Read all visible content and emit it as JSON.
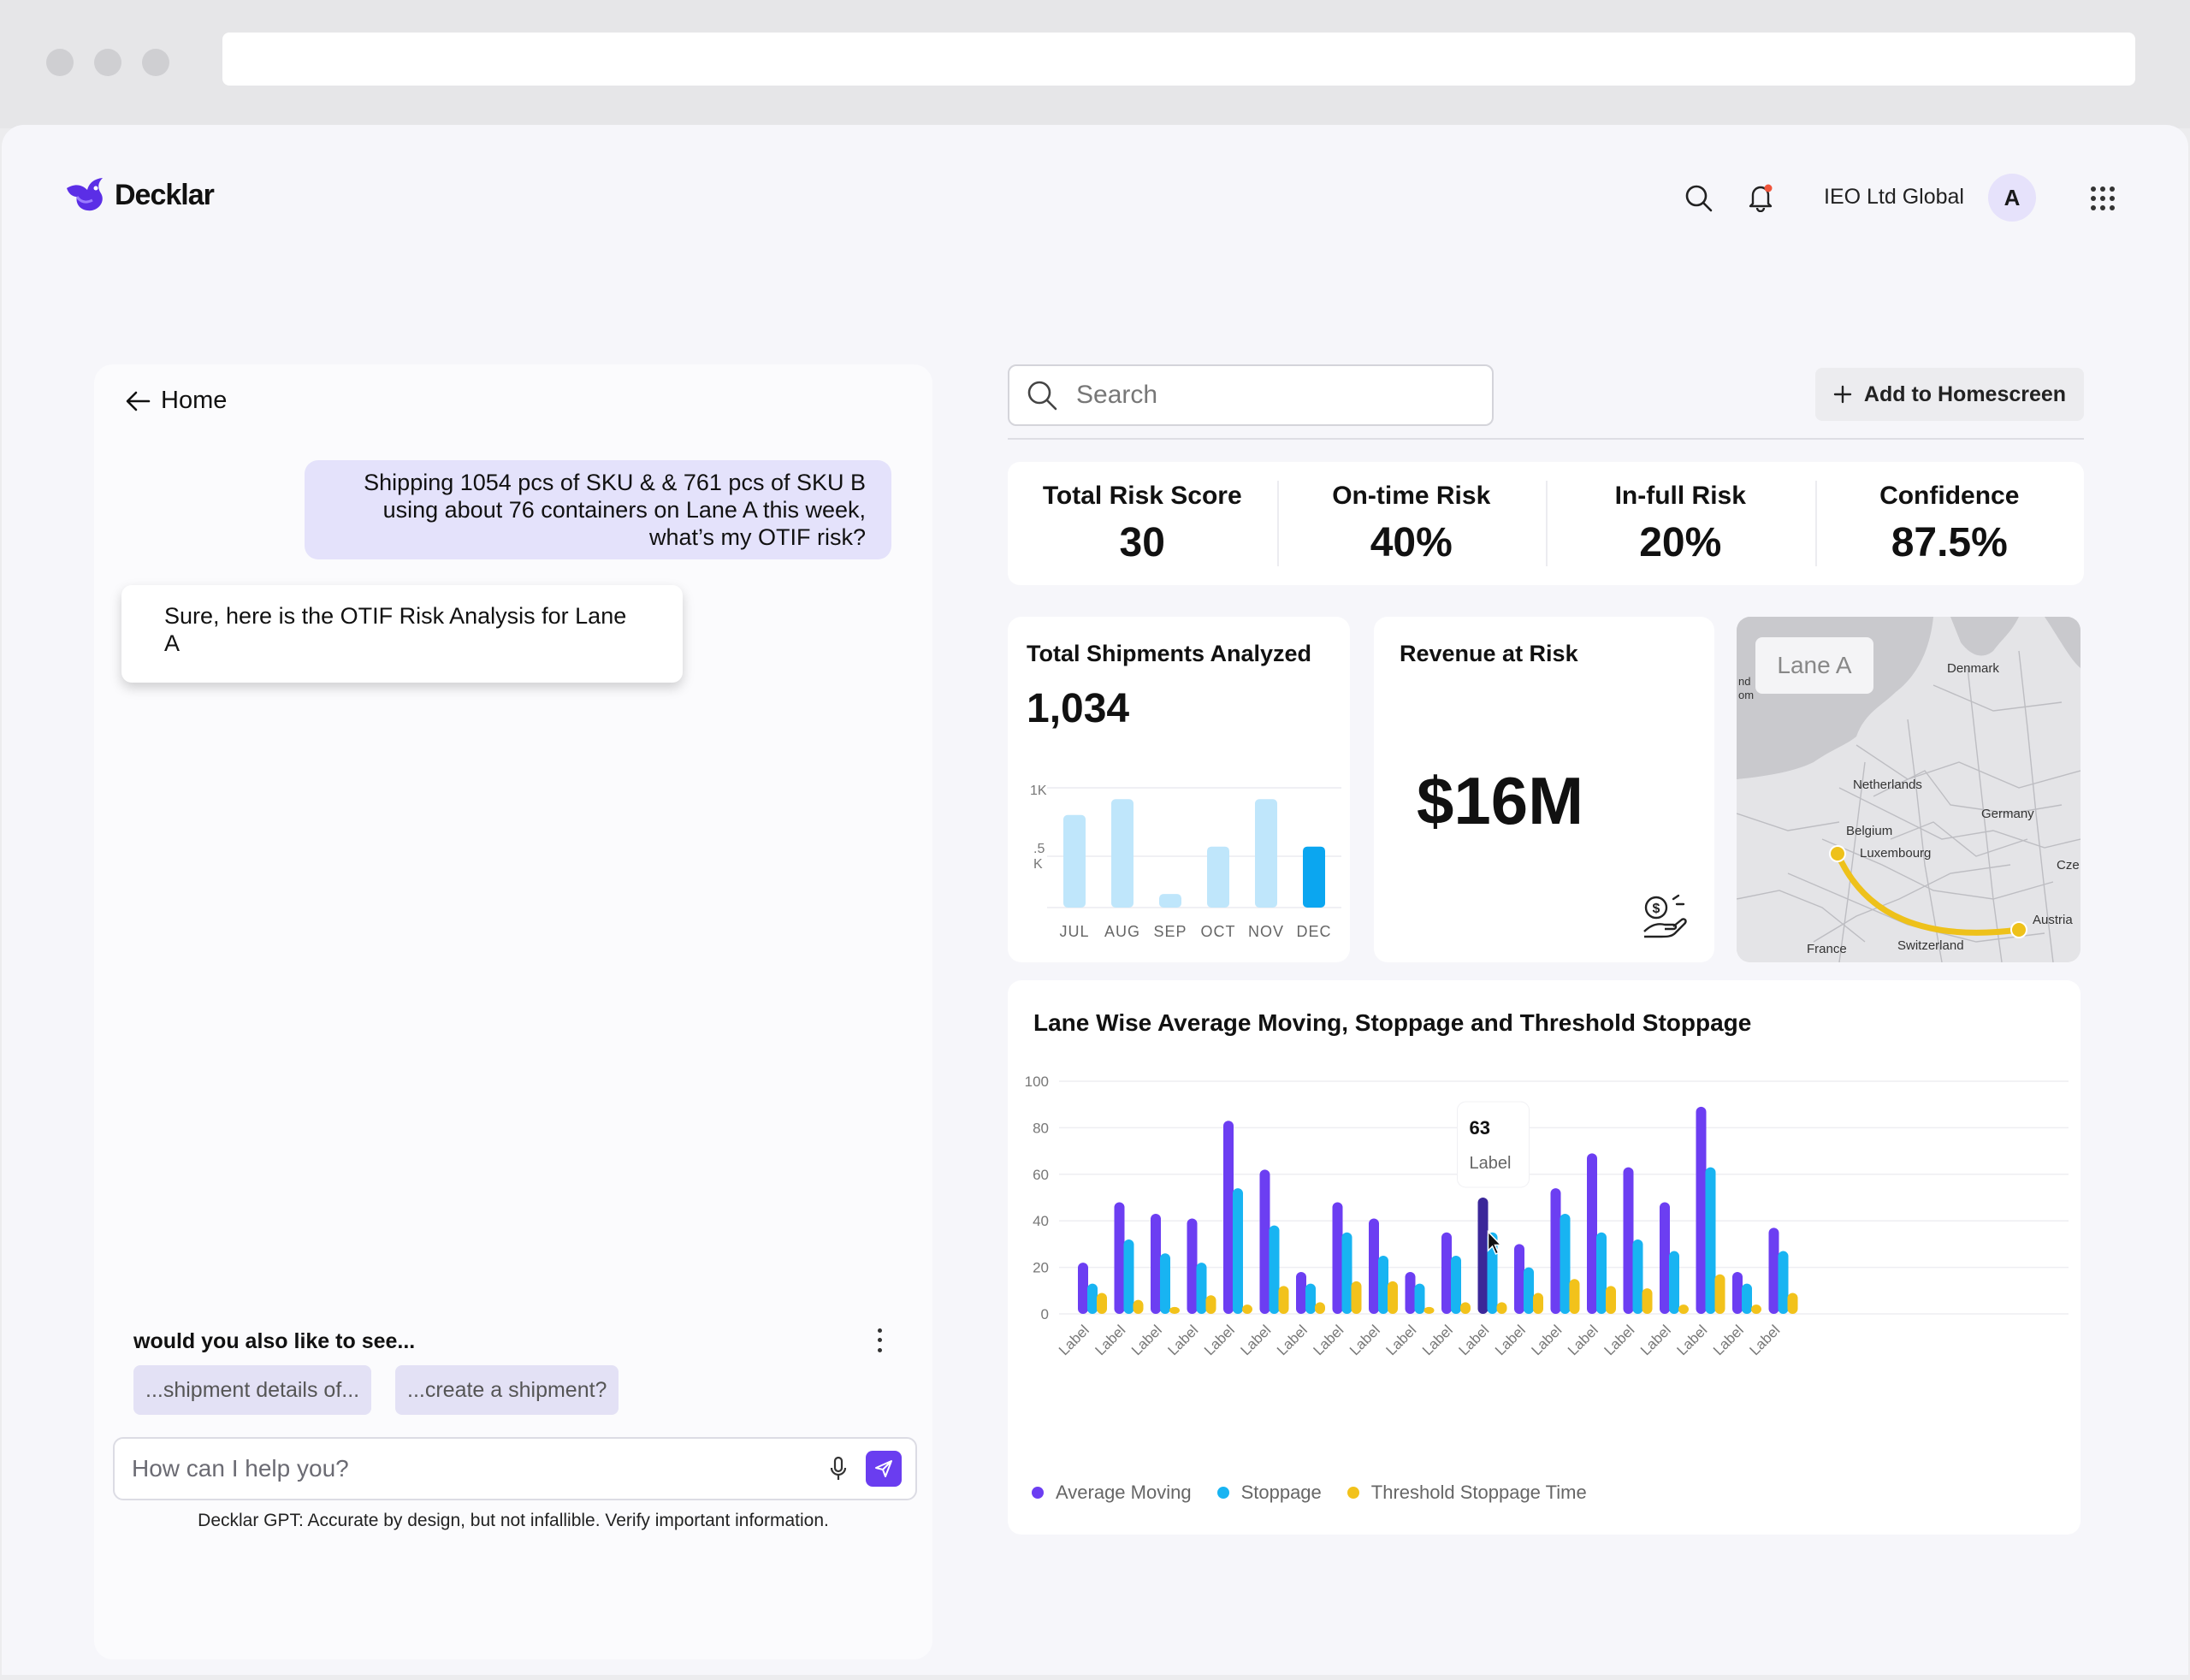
{
  "app": {
    "brand": "Decklar",
    "org_name": "IEO Ltd Global",
    "avatar_initial": "A"
  },
  "chat": {
    "back_label": "Home",
    "user_message": "Shipping 1054 pcs of SKU & & 761 pcs of SKU B using about 76 containers on Lane A this week, what’s my OTIF risk?",
    "bot_message": "Sure, here is the OTIF Risk Analysis for Lane A",
    "suggest_title": "would you also like to see...",
    "chips": [
      "...shipment details of...",
      "...create a shipment?"
    ],
    "input_placeholder": "How can I help you?",
    "disclaimer": "Decklar GPT: Accurate by design, but not infallible. Verify important information."
  },
  "dashboard": {
    "search_placeholder": "Search",
    "add_button": "Add to Homescreen",
    "kpis": [
      {
        "label": "Total Risk Score",
        "value": "30"
      },
      {
        "label": "On-time Risk",
        "value": "40%"
      },
      {
        "label": "In-full Risk",
        "value": "20%"
      },
      {
        "label": "Confidence",
        "value": "87.5%"
      }
    ],
    "shipments": {
      "title": "Total Shipments Analyzed",
      "value": "1,034"
    },
    "revenue": {
      "title": "Revenue at Risk",
      "value": "$16M"
    },
    "map": {
      "lane_label": "Lane A",
      "labels": [
        "Denmark",
        "Netherlands",
        "Germany",
        "Belgium",
        "Luxembourg",
        "Cze",
        "Austria",
        "France",
        "Switzerland",
        "nd",
        "om"
      ]
    },
    "lane_chart_title": "Lane Wise Average Moving, Stoppage and Threshold Stoppage",
    "tooltip": {
      "value": "63",
      "label": "Label"
    }
  },
  "colors": {
    "accent": "#6a3df0",
    "moving": "#6c3ef2",
    "stoppage": "#18b4f2",
    "threshold": "#f2c21b",
    "mini_bar": "#bfe6fb",
    "mini_bar_active": "#0ba6f0",
    "route": "#eec11a"
  },
  "chart_data": [
    {
      "type": "bar",
      "categories": [
        "JUL",
        "AUG",
        "SEP",
        "OCT",
        "NOV",
        "DEC"
      ],
      "values": [
        820,
        960,
        120,
        540,
        960,
        540
      ],
      "y_tick_labels": [
        "1K",
        ".5\nK"
      ],
      "ylim": [
        0,
        1000
      ],
      "highlight_index": 5
    },
    {
      "type": "bar",
      "title": "Lane Wise Average Moving, Stoppage and Threshold Stoppage",
      "categories": [
        "Label",
        "Label",
        "Label",
        "Label",
        "Label",
        "Label",
        "Label",
        "Label",
        "Label",
        "Label",
        "Label",
        "Label",
        "Label",
        "Label",
        "Label",
        "Label",
        "Label",
        "Label",
        "Label",
        "Label"
      ],
      "series": [
        {
          "name": "Average Moving",
          "values": [
            22,
            48,
            43,
            41,
            83,
            62,
            18,
            48,
            41,
            18,
            35,
            50,
            30,
            54,
            69,
            63,
            48,
            89,
            18,
            37
          ]
        },
        {
          "name": "Stoppage",
          "values": [
            13,
            32,
            26,
            22,
            54,
            38,
            13,
            35,
            25,
            13,
            25,
            35,
            20,
            43,
            35,
            32,
            27,
            63,
            13,
            27
          ]
        },
        {
          "name": "Threshold Stoppage Time",
          "values": [
            9,
            6,
            3,
            8,
            4,
            12,
            5,
            14,
            14,
            3,
            5,
            5,
            9,
            15,
            12,
            11,
            4,
            17,
            4,
            9
          ]
        }
      ],
      "yticks": [
        0,
        20,
        40,
        60,
        80,
        100
      ],
      "ylim": [
        0,
        100
      ],
      "grid": true,
      "legend": "bottom-left",
      "highlight_index": 11
    }
  ]
}
